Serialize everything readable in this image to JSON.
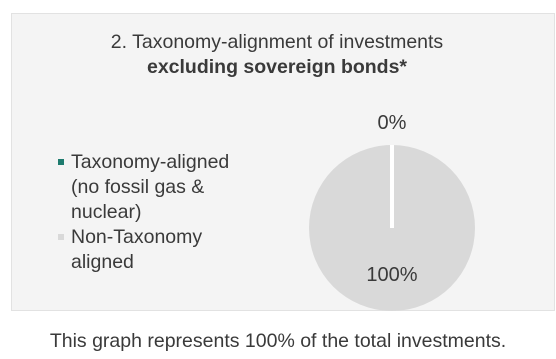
{
  "chart_data": {
    "type": "pie",
    "title_line1": "2. Taxonomy-alignment of investments",
    "title_line2": "excluding sovereign bonds*",
    "series": [
      {
        "name": "Taxonomy-aligned (no fossil gas & nuclear)",
        "value": 0,
        "label": "0%",
        "color": "#1e7b6e"
      },
      {
        "name": "Non-Taxonomy aligned",
        "value": 100,
        "label": "100%",
        "color": "#d9d9d9"
      }
    ],
    "legend_position": "left"
  },
  "footnote": "This graph represents 100% of the total investments."
}
